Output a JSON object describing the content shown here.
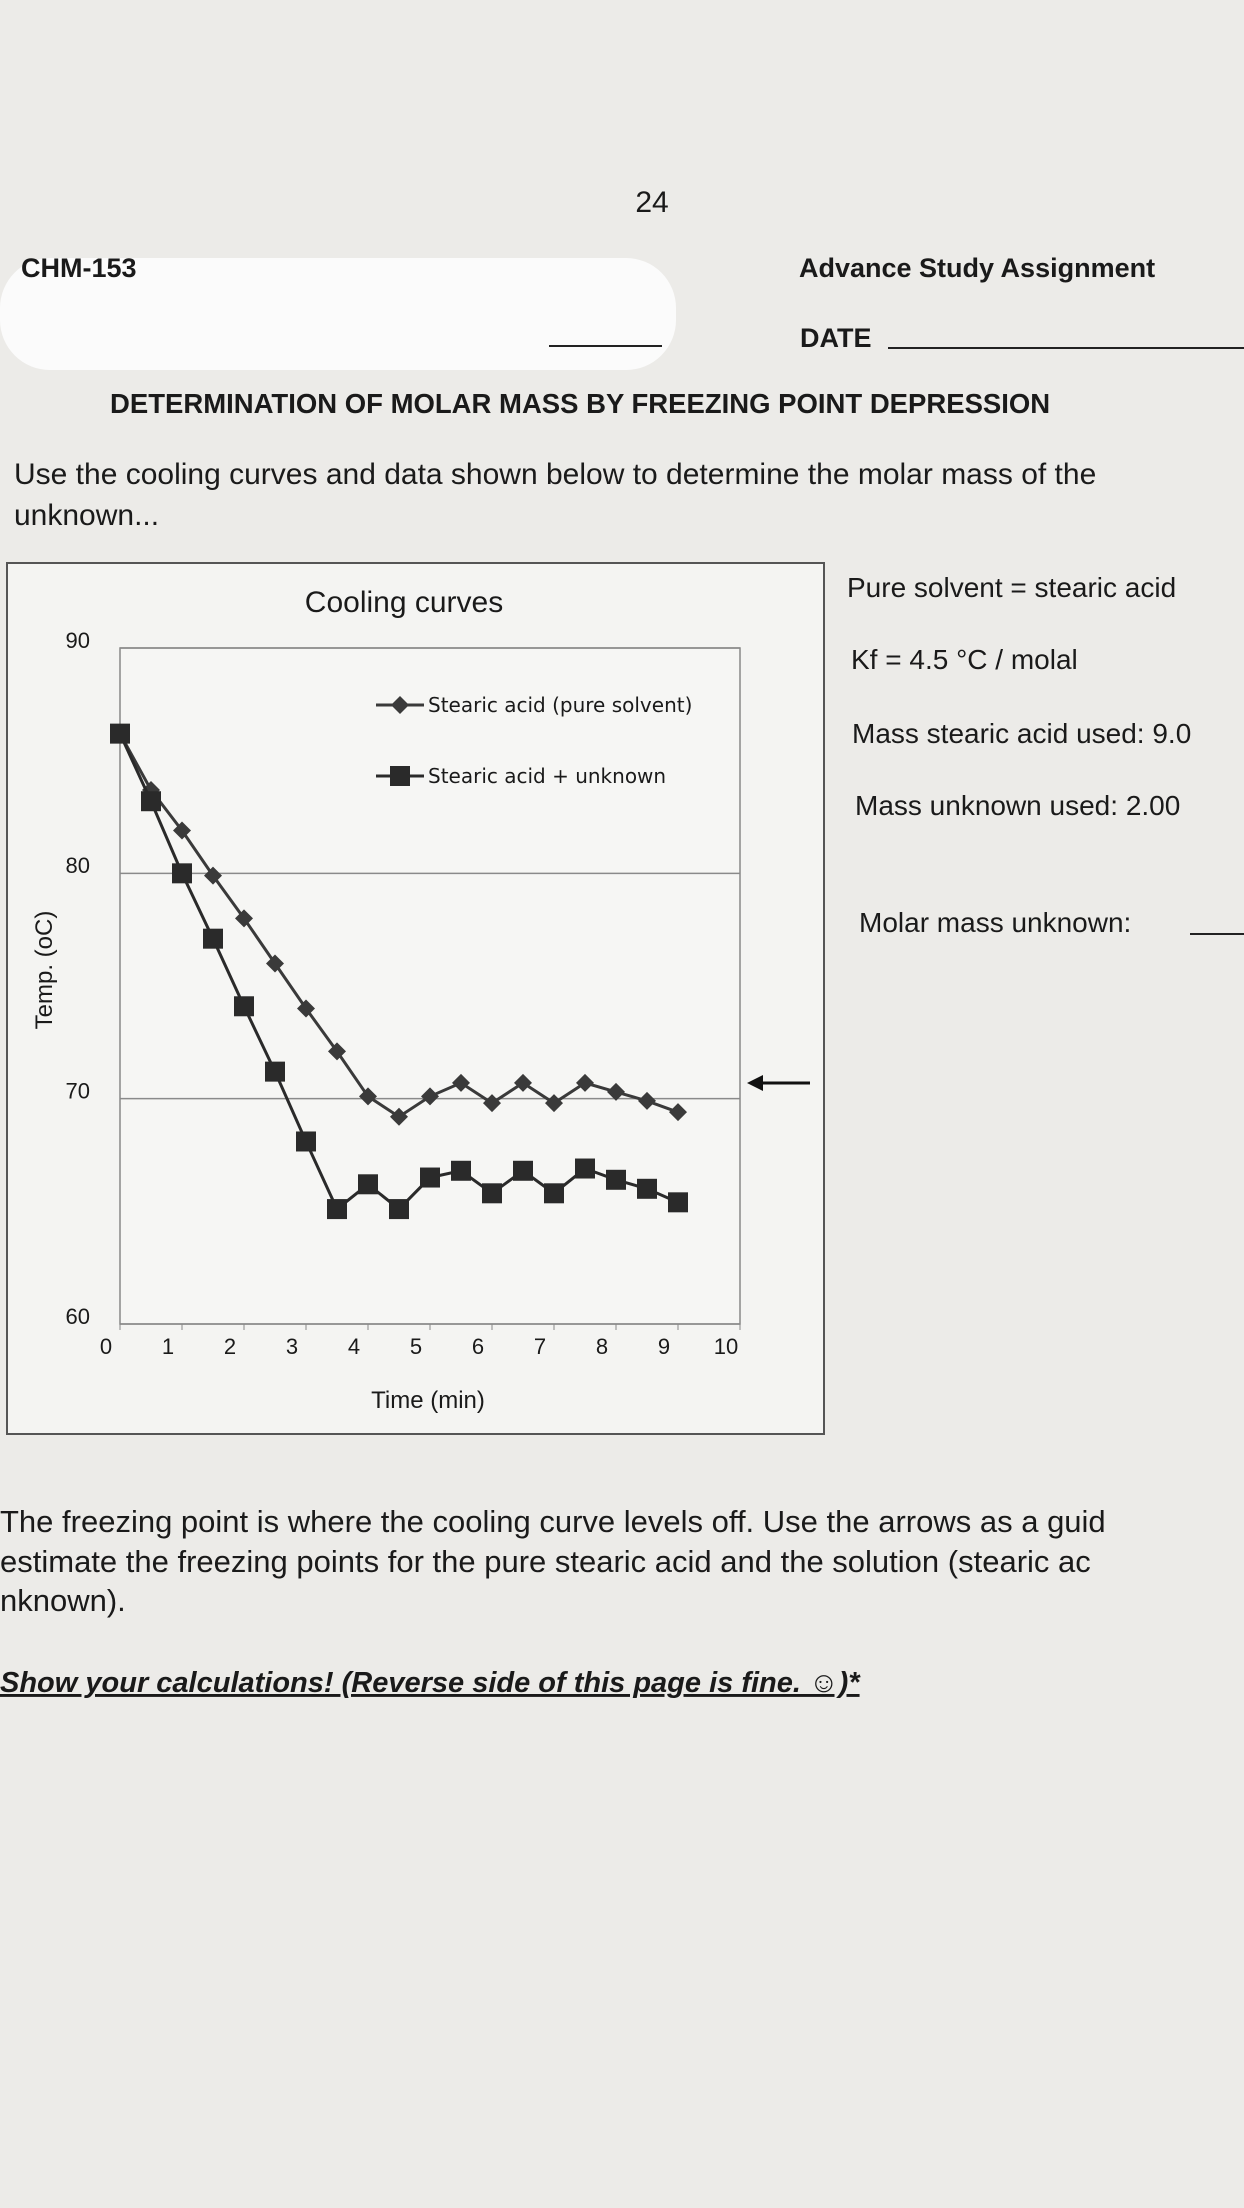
{
  "page_number": "24",
  "header": {
    "course": "CHM-153",
    "assignment": "Advance Study Assignment",
    "date_label": "DATE"
  },
  "title": "DETERMINATION OF MOLAR MASS BY FREEZING POINT DEPRESSION",
  "instructions": [
    "Use the cooling curves and data shown below to determine the molar mass of the",
    "unknown..."
  ],
  "info": [
    "Pure solvent = stearic acid",
    "Kf = 4.5 °C / molal",
    "Mass stearic acid used: 9.0",
    "Mass unknown used: 2.00",
    "Molar mass unknown:"
  ],
  "footer": {
    "lines": [
      "The freezing point is where the cooling curve levels off. Use the arrows as a guid",
      "estimate the freezing points for the pure stearic acid and the solution (stearic ac",
      "nknown)."
    ],
    "note": "Show your calculations! (Reverse side of this page is fine. ☺)*"
  },
  "chart_data": {
    "type": "line",
    "title": "Cooling curves",
    "x_label": "Time (min)",
    "y_label": "Temp. (oC)",
    "x": [
      0,
      0.5,
      1,
      1.5,
      2,
      2.5,
      3,
      3.5,
      4,
      4.5,
      5,
      5.5,
      6,
      6.5,
      7,
      7.5,
      8,
      8.5,
      9
    ],
    "series": [
      {
        "name": "Stearic acid (pure solvent)",
        "color": "#3a3a3a",
        "marker": "diamond",
        "values": [
          86.2,
          83.7,
          81.9,
          79.9,
          78.0,
          76.0,
          74.0,
          72.1,
          70.1,
          69.2,
          70.1,
          70.7,
          69.8,
          70.7,
          69.8,
          70.7,
          70.3,
          69.9,
          69.4
        ]
      },
      {
        "name": "Stearic acid + unknown",
        "color": "#2a2a2a",
        "marker": "square",
        "values": [
          86.2,
          83.2,
          80.0,
          77.1,
          74.1,
          71.2,
          68.1,
          65.1,
          66.2,
          65.1,
          66.5,
          66.8,
          65.8,
          66.8,
          65.8,
          66.9,
          66.4,
          66.0,
          65.4
        ]
      }
    ],
    "xlim": [
      0,
      10
    ],
    "ylim": [
      60,
      90
    ],
    "xticks": [
      0,
      1,
      2,
      3,
      4,
      5,
      6,
      7,
      8,
      9,
      10
    ],
    "yticks": [
      60,
      70,
      80,
      90
    ],
    "grid": true
  }
}
